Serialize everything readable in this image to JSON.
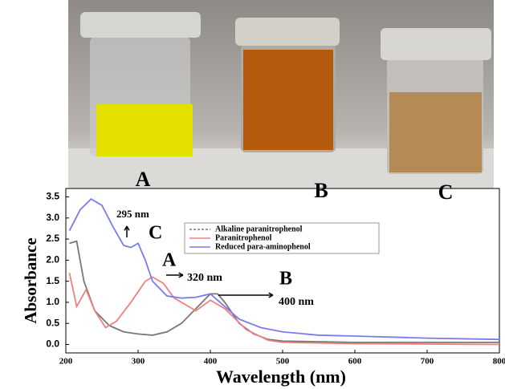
{
  "chart_data": {
    "type": "line",
    "photo_labels": [
      "A",
      "B",
      "C"
    ],
    "x_label": "Wavelength (nm)",
    "y_label": "Absorbance",
    "annotations": [
      "295 nm",
      "C",
      "A",
      "320 nm",
      "B",
      "400 nm"
    ],
    "xlim": [
      200,
      800
    ],
    "xticks": [
      200,
      300,
      400,
      500,
      600,
      700,
      800
    ],
    "ylim": [
      -0.2,
      3.7
    ],
    "yticks": [
      {
        "value": 0,
        "label": "0.0"
      },
      {
        "value": 0.5,
        "label": "0.5"
      },
      {
        "value": 1,
        "label": "1.0"
      },
      {
        "value": 1.5,
        "label": "1.5"
      },
      {
        "value": 2,
        "label": "2.0"
      },
      {
        "value": 2.5,
        "label": "2.5"
      },
      {
        "value": 3,
        "label": "3.0"
      },
      {
        "value": 3.5,
        "label": "3.5"
      }
    ],
    "legend": "top-right",
    "series": [
      {
        "name": "Alkaline paranitrophenol",
        "color": "#777777",
        "x": [
          205,
          215,
          225,
          240,
          260,
          280,
          300,
          320,
          340,
          360,
          380,
          400,
          410,
          420,
          440,
          460,
          480,
          500,
          600,
          700,
          800
        ],
        "values": [
          2.4,
          2.45,
          1.5,
          0.8,
          0.45,
          0.3,
          0.25,
          0.22,
          0.3,
          0.5,
          0.85,
          1.2,
          1.2,
          1.0,
          0.5,
          0.25,
          0.12,
          0.08,
          0.05,
          0.05,
          0.05
        ]
      },
      {
        "name": "Paranitrophenol",
        "color": "#f08080",
        "x": [
          205,
          215,
          228,
          240,
          255,
          270,
          290,
          310,
          320,
          335,
          350,
          380,
          400,
          420,
          450,
          480,
          500,
          600,
          800
        ],
        "values": [
          1.7,
          0.9,
          1.3,
          0.8,
          0.4,
          0.55,
          1.0,
          1.5,
          1.6,
          1.45,
          1.1,
          0.8,
          1.05,
          0.85,
          0.35,
          0.1,
          0.05,
          0.02,
          0.0
        ]
      },
      {
        "name": "Reduced para-aminophenol",
        "color": "#7b7bf0",
        "x": [
          205,
          220,
          235,
          250,
          265,
          280,
          290,
          300,
          310,
          320,
          340,
          360,
          380,
          400,
          420,
          440,
          470,
          500,
          550,
          600,
          700,
          800
        ],
        "values": [
          2.7,
          3.2,
          3.45,
          3.3,
          2.8,
          2.35,
          2.3,
          2.4,
          2.0,
          1.5,
          1.15,
          1.1,
          1.12,
          1.2,
          0.9,
          0.6,
          0.4,
          0.3,
          0.22,
          0.2,
          0.15,
          0.12
        ]
      }
    ]
  }
}
